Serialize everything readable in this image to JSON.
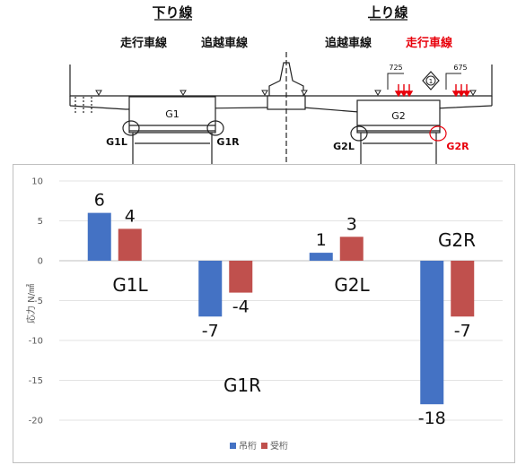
{
  "diagram": {
    "downline_title": "下り線",
    "upline_title": "上り線",
    "down_lanes": [
      "走行車線",
      "追越車線"
    ],
    "up_lanes": [
      "追越車線",
      "走行車線"
    ],
    "dim_left": "725",
    "dim_right": "675",
    "marker": "1",
    "girders": [
      "G1",
      "G2"
    ],
    "bearings": [
      "G1L",
      "G1R",
      "G2L",
      "G2R"
    ]
  },
  "chart_data": {
    "type": "bar",
    "ylabel": "応力 N/㎟",
    "ylim": [
      -20,
      10
    ],
    "yticks": [
      10,
      5,
      0,
      -5,
      -10,
      -15,
      -20
    ],
    "categories": [
      "G1L",
      "G1R",
      "G2L",
      "G2R"
    ],
    "series": [
      {
        "name": "吊桁",
        "color": "#4472c4",
        "values": [
          6,
          -7,
          1,
          -18
        ]
      },
      {
        "name": "受桁",
        "color": "#c0504d",
        "values": [
          4,
          -4,
          3,
          -7
        ]
      }
    ],
    "data_labels": [
      [
        "6",
        "-7",
        "1",
        "-18"
      ],
      [
        "4",
        "-4",
        "3",
        "-7"
      ]
    ],
    "legend_position": "bottom"
  }
}
